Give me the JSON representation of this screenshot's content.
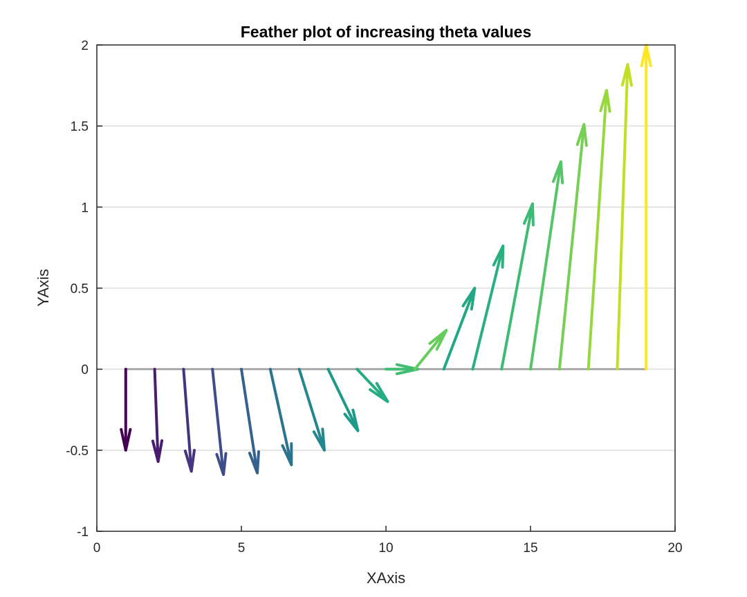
{
  "chart_data": {
    "type": "feather",
    "title": "Feather plot of increasing theta values",
    "xlabel": "XAxis",
    "ylabel": "YAxis",
    "xlim": [
      0,
      20
    ],
    "ylim": [
      -1,
      2
    ],
    "xticks": [
      0,
      5,
      10,
      15,
      20
    ],
    "xtick_labels": [
      "0",
      "5",
      "10",
      "15",
      "20"
    ],
    "yticks": [
      -1,
      -0.5,
      0,
      0.5,
      1,
      1.5,
      2
    ],
    "ytick_labels": [
      "-1",
      "-0.5",
      "0",
      "0.5",
      "1",
      "1.5",
      "2"
    ],
    "grid": "y",
    "baseline_color": "#a8a8a8",
    "series": [
      {
        "x": 1,
        "u": 0.0,
        "v": -0.5,
        "color": "#440154"
      },
      {
        "x": 2,
        "u": 0.12,
        "v": -0.57,
        "color": "#481c6e"
      },
      {
        "x": 3,
        "u": 0.27,
        "v": -0.63,
        "color": "#453581"
      },
      {
        "x": 4,
        "u": 0.38,
        "v": -0.65,
        "color": "#3d4d8a"
      },
      {
        "x": 5,
        "u": 0.55,
        "v": -0.64,
        "color": "#34618d"
      },
      {
        "x": 6,
        "u": 0.73,
        "v": -0.59,
        "color": "#2b748e"
      },
      {
        "x": 7,
        "u": 0.87,
        "v": -0.5,
        "color": "#24878e"
      },
      {
        "x": 8,
        "u": 1.03,
        "v": -0.38,
        "color": "#1f998a"
      },
      {
        "x": 9,
        "u": 1.06,
        "v": -0.2,
        "color": "#25ac82"
      },
      {
        "x": 10,
        "u": 1.1,
        "v": 0.0,
        "color": "#40bd72"
      },
      {
        "x": 11,
        "u": 1.09,
        "v": 0.24,
        "color": "#67cc5c"
      },
      {
        "x": 12,
        "u": 1.07,
        "v": 0.5,
        "color": "#22a884"
      },
      {
        "x": 13,
        "u": 1.05,
        "v": 0.76,
        "color": "#2ab07f"
      },
      {
        "x": 14,
        "u": 1.07,
        "v": 1.02,
        "color": "#3cbb75"
      },
      {
        "x": 15,
        "u": 1.05,
        "v": 1.28,
        "color": "#55c568"
      },
      {
        "x": 16,
        "u": 0.85,
        "v": 1.51,
        "color": "#75d054"
      },
      {
        "x": 17,
        "u": 0.63,
        "v": 1.72,
        "color": "#98d83e"
      },
      {
        "x": 18,
        "u": 0.36,
        "v": 1.88,
        "color": "#c2df23"
      },
      {
        "x": 19,
        "u": 0.0,
        "v": 2.0,
        "color": "#fde725"
      }
    ]
  }
}
